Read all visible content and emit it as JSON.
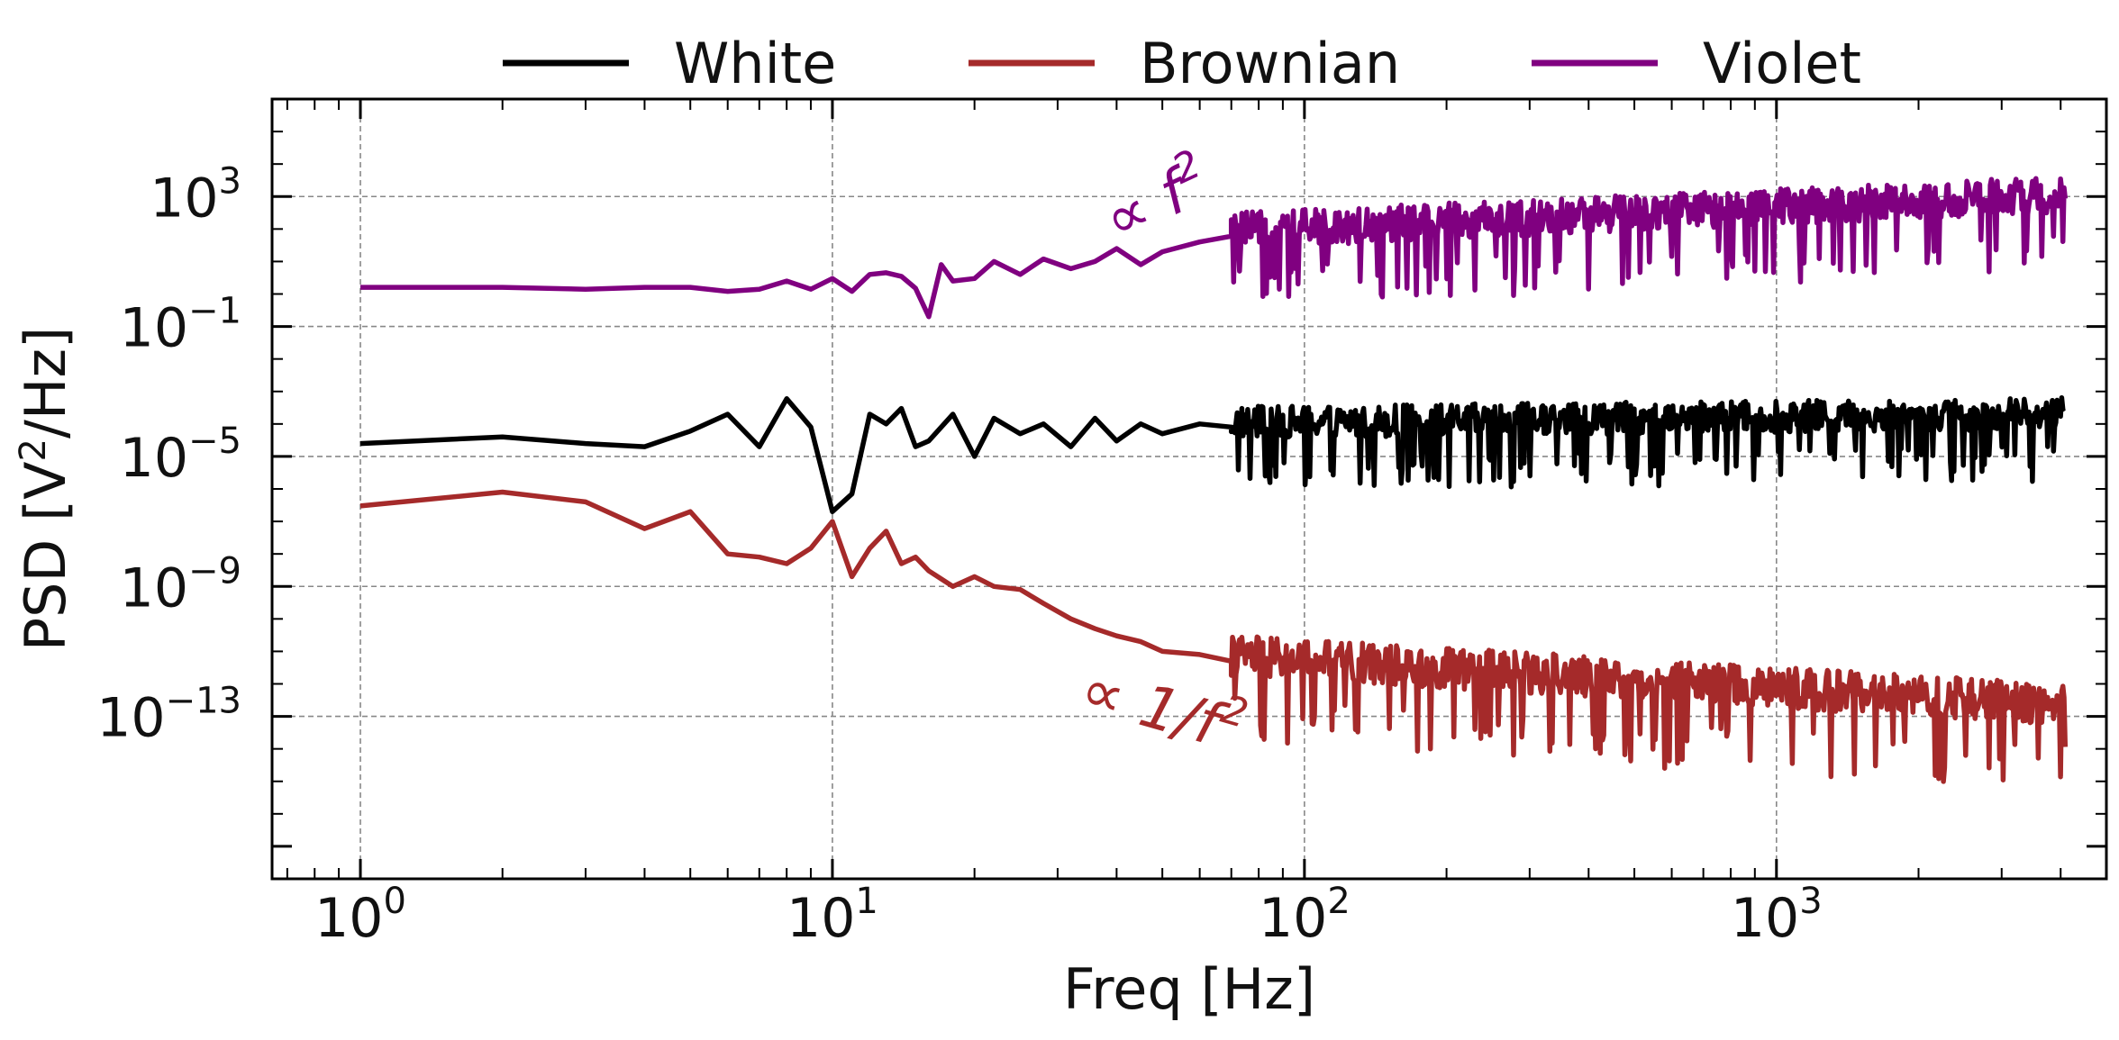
{
  "chart_data": {
    "type": "line",
    "xscale": "log",
    "yscale": "log",
    "xlabel": "Freq [Hz]",
    "ylabel_main": "PSD [V",
    "ylabel_sup": "2",
    "ylabel_end": "/Hz]",
    "xlim": [
      0.65,
      5000
    ],
    "ylim": [
      1e-18,
      1000000.0
    ],
    "grid": true,
    "legend_position": "top-center",
    "x_ticks": [
      {
        "base": "10",
        "exp": "0",
        "value": 1
      },
      {
        "base": "10",
        "exp": "1",
        "value": 10
      },
      {
        "base": "10",
        "exp": "2",
        "value": 100
      },
      {
        "base": "10",
        "exp": "3",
        "value": 1000
      }
    ],
    "y_ticks": [
      {
        "base": "10",
        "exp": "3",
        "value": 1000
      },
      {
        "base": "10",
        "exp": "−1",
        "value": 0.1
      },
      {
        "base": "10",
        "exp": "−5",
        "value": 1e-05
      },
      {
        "base": "10",
        "exp": "−9",
        "value": 1e-09
      },
      {
        "base": "10",
        "exp": "−13",
        "value": 1e-13
      }
    ],
    "series": [
      {
        "name": "White",
        "color": "#000000",
        "x": [
          1,
          2,
          3,
          4,
          5,
          6,
          7,
          8,
          9,
          10,
          11,
          12,
          13,
          14,
          15,
          16,
          18,
          20,
          22,
          25,
          28,
          32,
          36,
          40,
          45,
          50,
          60,
          70
        ],
        "values": [
          2.5e-05,
          4e-05,
          2.5e-05,
          2e-05,
          6e-05,
          0.0002,
          2e-05,
          0.0006,
          8e-05,
          2e-07,
          7e-07,
          0.0002,
          0.0001,
          0.0003,
          2e-05,
          3e-05,
          0.0002,
          1e-05,
          0.00015,
          5e-05,
          0.0001,
          2e-05,
          0.00015,
          3e-05,
          0.0001,
          5e-05,
          0.0001,
          8e-05
        ],
        "trend": {
          "x_start": 70,
          "x_end": 4096,
          "center_start": 8e-05,
          "center_end": 0.00015,
          "spread_log10": 0.7
        }
      },
      {
        "name": "Brownian",
        "color": "#a52a2a",
        "x": [
          1,
          2,
          3,
          4,
          5,
          6,
          7,
          8,
          9,
          10,
          11,
          12,
          13,
          14,
          15,
          16,
          18,
          20,
          22,
          25,
          28,
          32,
          36,
          40,
          45,
          50,
          60,
          70
        ],
        "values": [
          3e-07,
          8e-07,
          4e-07,
          6e-08,
          2e-07,
          1e-08,
          8e-09,
          5e-09,
          1.5e-08,
          1e-07,
          2e-09,
          1.5e-08,
          5e-08,
          5e-09,
          8e-09,
          3e-09,
          1e-09,
          2e-09,
          1e-09,
          8e-10,
          3e-10,
          1e-10,
          5e-11,
          3e-11,
          2e-11,
          1e-11,
          8e-12,
          5e-12
        ],
        "trend": {
          "x_start": 70,
          "x_end": 4096,
          "center_start": 5e-12,
          "center_end": 1.5e-13,
          "spread_log10": 0.9
        }
      },
      {
        "name": "Violet",
        "color": "#800080",
        "x": [
          1,
          2,
          3,
          4,
          5,
          6,
          7,
          8,
          9,
          10,
          11,
          12,
          13,
          14,
          15,
          16,
          17,
          18,
          20,
          22,
          25,
          28,
          32,
          36,
          40,
          45,
          50,
          60,
          70
        ],
        "values": [
          1.6,
          1.6,
          1.4,
          1.6,
          1.6,
          1.2,
          1.4,
          2.5,
          1.4,
          3,
          1.2,
          4,
          4.5,
          3.5,
          1.5,
          0.2,
          8,
          2.5,
          3,
          10,
          4,
          12,
          6,
          10,
          25,
          8,
          20,
          40,
          60
        ],
        "trend": {
          "x_start": 70,
          "x_end": 4096,
          "center_start": 60,
          "center_end": 800,
          "spread_log10": 0.8
        }
      }
    ],
    "annotations": [
      {
        "text": "∝ f",
        "sup": "2",
        "color": "#800080",
        "x": 40,
        "y": 40,
        "rotation": -25
      },
      {
        "text": "∝ 1/f",
        "sup": "2",
        "color": "#a52a2a",
        "x": 33,
        "y": 2e-13,
        "rotation": 16
      }
    ]
  }
}
